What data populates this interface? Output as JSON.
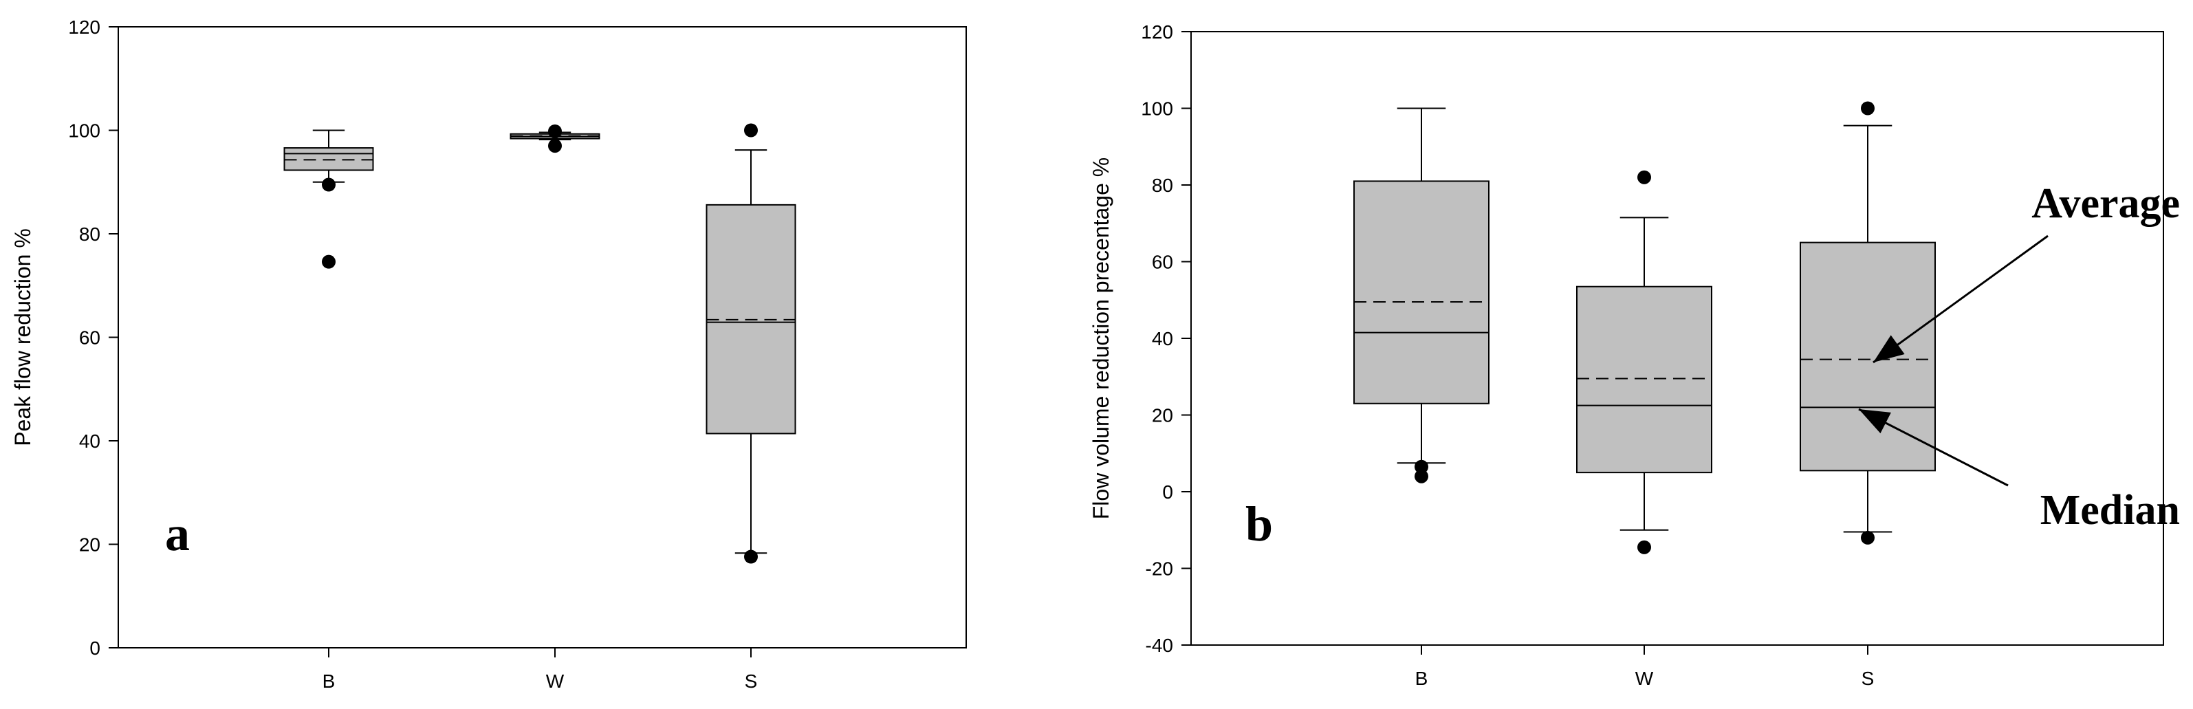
{
  "chart_data": [
    {
      "type": "box",
      "panel_label": "a",
      "title": "",
      "xlabel": "",
      "ylabel": "Peak flow reduction %",
      "ylim": [
        0,
        120
      ],
      "yticks": [
        0,
        20,
        40,
        60,
        80,
        100,
        120
      ],
      "categories": [
        "B",
        "W",
        "S"
      ],
      "boxes": [
        {
          "category": "B",
          "whisker_low": 90.0,
          "q1": 92.3,
          "median": 95.5,
          "mean": 94.3,
          "q3": 96.6,
          "whisker_high": 100.0,
          "outliers": [
            89.5,
            74.6
          ]
        },
        {
          "category": "W",
          "whisker_low": 98.2,
          "q1": 98.4,
          "median": 98.8,
          "mean": 98.9,
          "q3": 99.3,
          "whisker_high": 99.6,
          "outliers": [
            99.8,
            97.0
          ]
        },
        {
          "category": "S",
          "whisker_low": 18.3,
          "q1": 41.4,
          "median": 62.9,
          "mean": 63.4,
          "q3": 85.6,
          "whisker_high": 96.2,
          "outliers": [
            100.0,
            17.6
          ]
        }
      ]
    },
    {
      "type": "box",
      "panel_label": "b",
      "title": "",
      "xlabel": "",
      "ylabel": "Flow volume reduction precentage %",
      "ylim": [
        -40,
        120
      ],
      "yticks": [
        -40,
        -20,
        0,
        20,
        40,
        60,
        80,
        100,
        120
      ],
      "categories": [
        "B",
        "W",
        "S"
      ],
      "boxes": [
        {
          "category": "B",
          "whisker_low": 7.5,
          "q1": 23.0,
          "median": 41.5,
          "mean": 49.5,
          "q3": 81.0,
          "whisker_high": 100.0,
          "outliers": [
            6.5,
            4.0
          ]
        },
        {
          "category": "W",
          "whisker_low": -10.0,
          "q1": 5.0,
          "median": 22.5,
          "mean": 29.5,
          "q3": 53.5,
          "whisker_high": 71.5,
          "outliers": [
            82.0,
            -14.5
          ]
        },
        {
          "category": "S",
          "whisker_low": -10.5,
          "q1": 5.5,
          "median": 22.0,
          "mean": 34.5,
          "q3": 65.0,
          "whisker_high": 95.5,
          "outliers": [
            100.0,
            -12.0
          ]
        }
      ],
      "annotations": [
        {
          "text": "Average",
          "points_to": "mean",
          "category": "S"
        },
        {
          "text": "Median",
          "points_to": "median",
          "category": "S"
        }
      ]
    }
  ]
}
